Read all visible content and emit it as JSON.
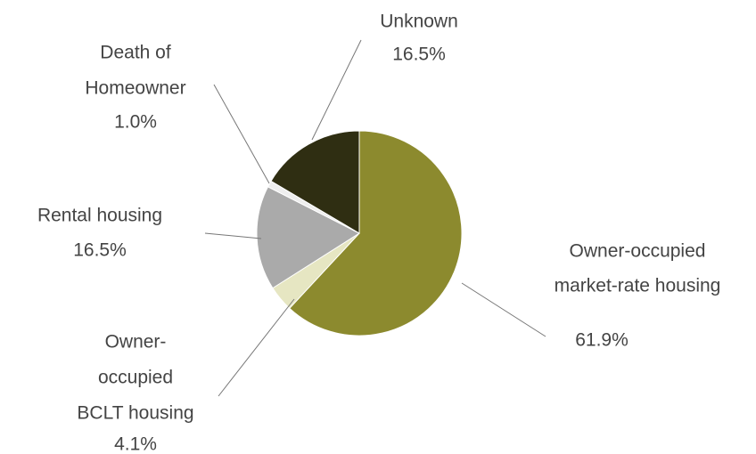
{
  "chart_data": {
    "type": "pie",
    "categories": [
      [
        "Owner-occupied",
        "market-rate housing"
      ],
      [
        "Owner-",
        "occupied",
        "BCLT housing"
      ],
      [
        "Rental housing"
      ],
      [
        "Death of",
        "Homeowner"
      ],
      [
        "Unknown"
      ]
    ],
    "values": [
      61.9,
      4.1,
      16.5,
      1.0,
      16.5
    ],
    "value_labels": [
      "61.9%",
      "4.1%",
      "16.5%",
      "1.0%",
      "16.5%"
    ],
    "colors": [
      "#8c8a2e",
      "#e6e6c2",
      "#aaaaaa",
      "#eeeeee",
      "#2f2e12"
    ]
  }
}
